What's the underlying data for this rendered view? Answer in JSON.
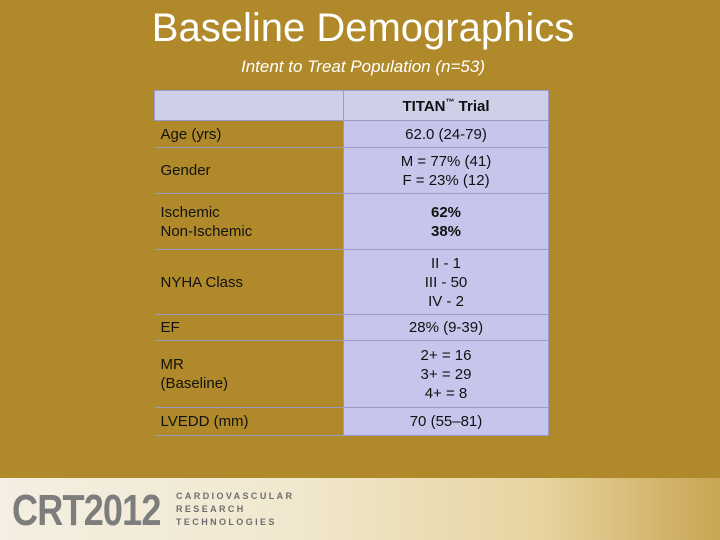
{
  "title": "Baseline Demographics",
  "subtitle": "Intent to Treat Population (n=53)",
  "table": {
    "header": {
      "label": "",
      "trial_name": "TITAN",
      "trademark": "™",
      "trial_suffix": " Trial"
    },
    "rows": [
      {
        "label_lines": [
          "Age (yrs)"
        ],
        "value_lines": [
          "62.0  (24-79)"
        ],
        "bold": false
      },
      {
        "label_lines": [
          "Gender"
        ],
        "value_lines": [
          "M = 77% (41)",
          "F = 23% (12)"
        ],
        "bold": false
      },
      {
        "label_lines": [
          "Ischemic",
          "Non-Ischemic"
        ],
        "value_lines": [
          "62%",
          "38%"
        ],
        "bold": true
      },
      {
        "label_lines": [
          "NYHA Class"
        ],
        "value_lines": [
          "II -  1",
          "III - 50",
          "IV - 2"
        ],
        "bold": false
      },
      {
        "label_lines": [
          "EF"
        ],
        "value_lines": [
          "28% (9-39)"
        ],
        "bold": false
      },
      {
        "label_lines": [
          "MR",
          "(Baseline)"
        ],
        "value_lines": [
          "2+ = 16",
          "3+ = 29",
          "4+ =   8"
        ],
        "bold": false
      },
      {
        "label_lines": [
          "LVEDD (mm)"
        ],
        "value_lines": [
          "70 (55–81)"
        ],
        "bold": false
      }
    ]
  },
  "footer": {
    "logo_number": "CRT2012",
    "logo_lines": [
      "CARDIOVASCULAR",
      "RESEARCH",
      "TECHNOLOGIES"
    ]
  },
  "colors": {
    "background": "#b08a2a",
    "table_value_cell": "#c6c6ec",
    "table_border": "#9a9ac8",
    "logo_gray": "#7d7d7d"
  }
}
